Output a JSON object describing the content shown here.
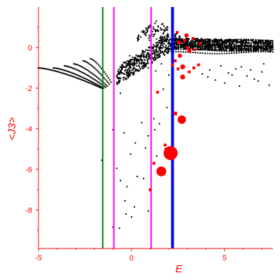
{
  "chart_data": {
    "type": "scatter",
    "title": "",
    "xlabel": "E",
    "ylabel": "<J3>",
    "xlim": [
      -5,
      7.6
    ],
    "ylim": [
      -9.9,
      2.0
    ],
    "x_ticks": [
      -5,
      0,
      5
    ],
    "y_ticks": [
      0,
      -2,
      -4,
      -6,
      -8
    ],
    "grid": false,
    "legend": "none",
    "colors": {
      "axis": "#ff0000",
      "points": "#000000",
      "highlight": "#ff0000",
      "line_green": "#008000",
      "line_magenta": "#ff00ff",
      "line_blue": "#0000ff"
    },
    "vertical_lines": [
      {
        "x": -1.55,
        "color": "#008000",
        "style": "thin"
      },
      {
        "x": -0.95,
        "color": "#ff00ff",
        "style": "thin"
      },
      {
        "x": 1.05,
        "color": "#ff00ff",
        "style": "thin"
      },
      {
        "x": 2.2,
        "color": "#0000ff",
        "style": "thick"
      }
    ],
    "highlighted_points": [
      {
        "x": 2.1,
        "y": -5.2,
        "size": 10
      },
      {
        "x": 1.6,
        "y": -6.1,
        "size": 7
      },
      {
        "x": 2.7,
        "y": -3.55,
        "size": 6
      },
      {
        "x": 2.75,
        "y": -1.45,
        "size": 3.5
      },
      {
        "x": 2.75,
        "y": -0.95,
        "size": 3.5
      },
      {
        "x": 2.6,
        "y": -0.4,
        "size": 3
      },
      {
        "x": 2.95,
        "y": 0.6,
        "size": 3
      },
      {
        "x": 3.1,
        "y": -0.15,
        "size": 3
      },
      {
        "x": 2.35,
        "y": -3.25,
        "size": 2.5
      },
      {
        "x": 2.55,
        "y": 0.25,
        "size": 2.5
      },
      {
        "x": 3.35,
        "y": -1.0,
        "size": 2
      },
      {
        "x": 3.6,
        "y": -0.85,
        "size": 2
      },
      {
        "x": 3.1,
        "y": -1.2,
        "size": 2
      },
      {
        "x": 3.0,
        "y": 0.0,
        "size": 2
      },
      {
        "x": 2.45,
        "y": 0.75,
        "size": 2
      },
      {
        "x": 2.85,
        "y": 0.35,
        "size": 2
      },
      {
        "x": 3.4,
        "y": -0.1,
        "size": 2
      },
      {
        "x": 2.2,
        "y": -0.85,
        "size": 2
      },
      {
        "x": 2.35,
        "y": -0.65,
        "size": 2
      },
      {
        "x": 2.5,
        "y": -1.05,
        "size": 2
      },
      {
        "x": 1.4,
        "y": -2.2,
        "size": 2
      },
      {
        "x": 1.0,
        "y": -7.0,
        "size": 2
      },
      {
        "x": 1.2,
        "y": -5.7,
        "size": 2
      },
      {
        "x": 1.8,
        "y": -4.8,
        "size": 2
      },
      {
        "x": 1.85,
        "y": -5.0,
        "size": 2
      },
      {
        "x": 3.3,
        "y": 0.45,
        "size": 2
      },
      {
        "x": 3.7,
        "y": 0.2,
        "size": 2
      }
    ],
    "scattered_points": [
      [
        -1.0,
        -4.05
      ],
      [
        -0.4,
        -4.2
      ],
      [
        1.2,
        -3.5
      ],
      [
        1.5,
        -3.75
      ],
      [
        0.2,
        -4.7
      ],
      [
        0.75,
        -4.95
      ],
      [
        0.9,
        -4.35
      ],
      [
        -0.05,
        -5.25
      ],
      [
        1.35,
        -5.35
      ],
      [
        -0.8,
        -5.95
      ],
      [
        0.3,
        -6.35
      ],
      [
        -0.6,
        -6.55
      ],
      [
        0.65,
        -6.45
      ],
      [
        -0.25,
        -6.85
      ],
      [
        1.0,
        -7.05
      ],
      [
        -0.35,
        -7.55
      ],
      [
        0.15,
        -7.85
      ],
      [
        -0.3,
        -8.2
      ],
      [
        0.9,
        -8.05
      ],
      [
        -1.0,
        -8.85
      ],
      [
        -0.65,
        -8.9
      ],
      [
        0.0,
        -8.35
      ],
      [
        1.9,
        -2.95
      ],
      [
        1.7,
        -2.05
      ],
      [
        -0.6,
        -2.25
      ],
      [
        -1.6,
        -5.55
      ],
      [
        1.25,
        -4.05
      ],
      [
        0.55,
        -3.7
      ],
      [
        4.5,
        -1.6
      ],
      [
        5.0,
        -1.75
      ],
      [
        5.4,
        -1.35
      ],
      [
        5.8,
        -1.9
      ],
      [
        6.2,
        -1.4
      ],
      [
        6.6,
        -1.55
      ],
      [
        7.0,
        -1.2
      ],
      [
        7.4,
        -1.85
      ],
      [
        4.2,
        -1.1
      ],
      [
        4.8,
        -0.9
      ],
      [
        5.2,
        -1.25
      ],
      [
        5.9,
        -0.95
      ],
      [
        6.4,
        -1.1
      ],
      [
        7.1,
        -0.8
      ],
      [
        3.8,
        -1.3
      ],
      [
        4.1,
        -1.45
      ],
      [
        6.8,
        -1.65
      ],
      [
        5.6,
        -1.05
      ],
      [
        0.6,
        -0.25
      ],
      [
        0.3,
        -0.6
      ],
      [
        -0.1,
        -0.4
      ],
      [
        0.9,
        -1.0
      ],
      [
        1.3,
        -1.15
      ],
      [
        -0.2,
        -1.25
      ],
      [
        2.0,
        -1.35
      ],
      [
        1.6,
        -0.8
      ]
    ],
    "dense_band": {
      "description_free": true,
      "x_start": -0.8,
      "x_end": 7.6
    },
    "left_curves": [
      {
        "x_from": -5.0,
        "x_to": -1.6,
        "y_from": -1.0,
        "y_to": -2.0
      },
      {
        "x_from": -4.2,
        "x_to": -1.5,
        "y_from": -1.0,
        "y_to": -2.0
      },
      {
        "x_from": -3.6,
        "x_to": -1.4,
        "y_from": -0.9,
        "y_to": -1.95
      },
      {
        "x_from": -3.1,
        "x_to": -1.3,
        "y_from": -0.8,
        "y_to": -1.9
      },
      {
        "x_from": -2.6,
        "x_to": -1.2,
        "y_from": -0.65,
        "y_to": -1.8
      },
      {
        "x_from": -2.2,
        "x_to": -1.1,
        "y_from": -0.55,
        "y_to": -1.7
      }
    ]
  }
}
